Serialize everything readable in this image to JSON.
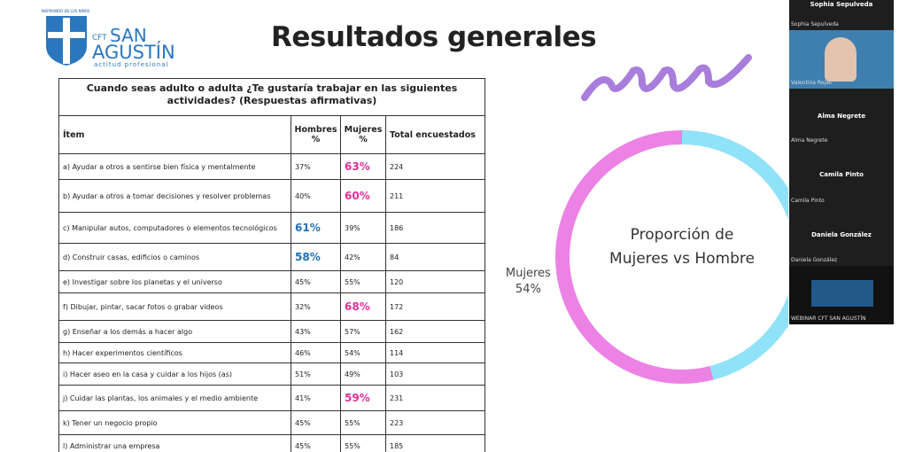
{
  "slide": {
    "logo": {
      "top_text": "INSPIRANDO EN LOS NIÑOS",
      "small": "CFT",
      "name1": "SAN",
      "name2": "AGUSTÍN",
      "tagline": "actitud profesional"
    },
    "title": "Resultados generales",
    "table": {
      "question": "Cuando seas adulto o adulta ¿Te gustaría trabajar en las siguientes actividades? (Respuestas afirmativas)",
      "headers": [
        "Ítem",
        "Hombres %",
        "Mujeres %",
        "Total encuestados"
      ],
      "highlight_colors": {
        "hombres": "#1f6fb5",
        "mujeres": "#e0309b"
      },
      "rows": [
        {
          "item": "a) Ayudar a otros a sentirse bien física y mentalmente",
          "hombres": "37%",
          "mujeres": "63%",
          "total": "224",
          "highlight": "mujeres"
        },
        {
          "item": "b) Ayudar a  otros a tomar decisiones y resolver problemas",
          "hombres": "40%",
          "mujeres": "60%",
          "total": "211",
          "highlight": "mujeres"
        },
        {
          "item": "c) Manipular  autos, computadores o elementos tecnológicos",
          "hombres": "61%",
          "mujeres": "39%",
          "total": "186",
          "highlight": "hombres"
        },
        {
          "item": "d) Construir  casas, edificios o caminos",
          "hombres": "58%",
          "mujeres": "42%",
          "total": "84",
          "highlight": "hombres"
        },
        {
          "item": "e) Investigar sobre los planetas y el universo",
          "hombres": "45%",
          "mujeres": "55%",
          "total": "120"
        },
        {
          "item": "f) Dibujar,  pintar, sacar fotos o grabar videos",
          "hombres": "32%",
          "mujeres": "68%",
          "total": "172",
          "highlight": "mujeres"
        },
        {
          "item": "g) Enseñar a los demás a hacer algo",
          "hombres": "43%",
          "mujeres": "57%",
          "total": "162"
        },
        {
          "item": "h) Hacer  experimentos científicos",
          "hombres": "46%",
          "mujeres": "54%",
          "total": "114"
        },
        {
          "item": "i) Hacer aseo  en la casa y cuidar a los hijos (as)",
          "hombres": "51%",
          "mujeres": "49%",
          "total": "103"
        },
        {
          "item": "j) Cuidar las  plantas, los animales y el medio ambiente",
          "hombres": "41%",
          "mujeres": "59%",
          "total": "231",
          "highlight": "mujeres"
        },
        {
          "item": "k) Tener un  negocio propio",
          "hombres": "45%",
          "mujeres": "55%",
          "total": "223"
        },
        {
          "item": "l) Administrar una empresa",
          "hombres": "45%",
          "mujeres": "55%",
          "total": "185"
        }
      ]
    },
    "donut": {
      "center_text": "Proporción de Mujeres vs Hombre",
      "segments": [
        {
          "label": "Mujeres",
          "value": 54,
          "value_label": "54%",
          "color": "#ec82e4"
        },
        {
          "value": 46,
          "color": "#90e2f8"
        }
      ]
    }
  },
  "participants": [
    {
      "name": "Sophia Sepulveda",
      "caption": "Sophia Sepulveda"
    },
    {
      "caption": "Valentina Rojas"
    },
    {
      "name": "Alma Negrete",
      "caption": "Alma Negrete"
    },
    {
      "name": "Camila Pinto",
      "caption": "Camila Pinto"
    },
    {
      "name": "Daniela González",
      "caption": "Daniela González"
    },
    {
      "caption": "WEBINAR CFT SAN AGUSTÍN"
    }
  ]
}
